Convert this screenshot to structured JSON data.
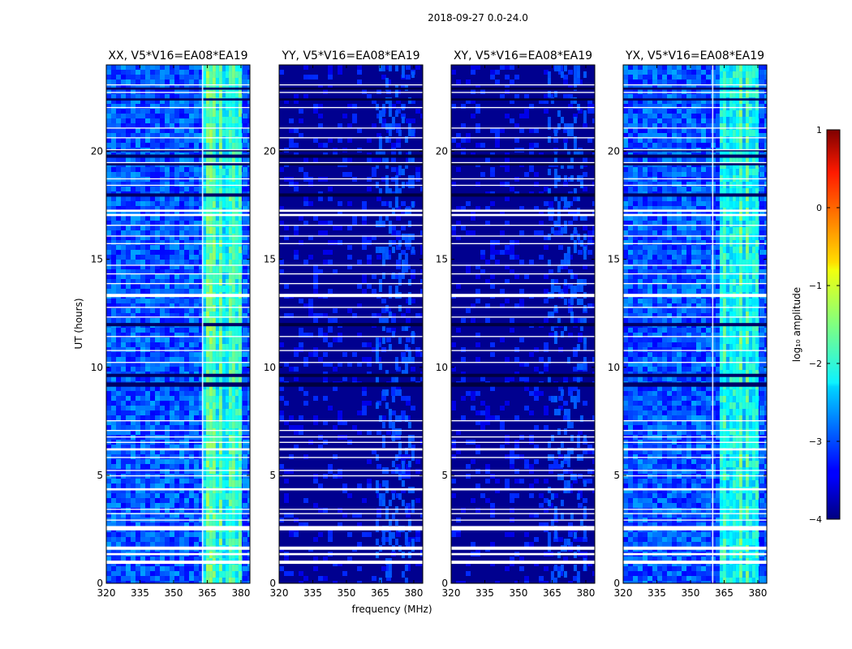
{
  "figure": {
    "suptitle": "2018-09-27 0.0-24.0",
    "ylabel": "UT (hours)",
    "xlabel": "frequency (MHz)"
  },
  "chart_data": {
    "type": "heatmap",
    "title": "2018-09-27 0.0-24.0",
    "xlabel": "frequency (MHz)",
    "ylabel": "UT (hours)",
    "xlim": [
      320,
      384
    ],
    "ylim": [
      0,
      24
    ],
    "xticks": [
      320,
      335,
      350,
      365,
      380
    ],
    "yticks": [
      0,
      5,
      10,
      15,
      20
    ],
    "panels": [
      {
        "name": "xx",
        "title": "XX, V5*V16=EA08*EA19",
        "level": "high",
        "hot_band_mhz": [
          363,
          380
        ],
        "flag_band_mhz": [
          362.6,
          363.2
        ]
      },
      {
        "name": "yy",
        "title": "YY, V5*V16=EA08*EA19",
        "level": "low",
        "hot_band_mhz": [
          363,
          380
        ],
        "flag_band_mhz": null
      },
      {
        "name": "xy",
        "title": "XY, V5*V16=EA08*EA19",
        "level": "low",
        "hot_band_mhz": [
          363,
          380
        ],
        "flag_band_mhz": null
      },
      {
        "name": "yx",
        "title": "YX, V5*V16=EA08*EA19",
        "level": "high",
        "hot_band_mhz": [
          363,
          380
        ],
        "flag_band_mhz": [
          359.6,
          360.2
        ]
      }
    ],
    "flagged_ut_hours": [
      [
        0.9,
        1.05
      ],
      [
        1.3,
        1.4
      ],
      [
        1.55,
        1.7
      ],
      [
        2.45,
        2.65
      ],
      [
        2.9,
        2.95
      ],
      [
        3.2,
        3.25
      ],
      [
        3.4,
        3.45
      ],
      [
        4.3,
        4.4
      ],
      [
        4.95,
        5.0
      ],
      [
        5.2,
        5.25
      ],
      [
        5.8,
        5.85
      ],
      [
        6.15,
        6.25
      ],
      [
        6.5,
        6.55
      ],
      [
        6.75,
        6.8
      ],
      [
        7.05,
        7.1
      ],
      [
        7.5,
        7.55
      ],
      [
        10.2,
        10.25
      ],
      [
        10.75,
        10.8
      ],
      [
        11.4,
        11.45
      ],
      [
        12.3,
        12.35
      ],
      [
        12.75,
        12.8
      ],
      [
        13.25,
        13.4
      ],
      [
        13.85,
        13.9
      ],
      [
        14.3,
        14.35
      ],
      [
        14.7,
        14.75
      ],
      [
        15.7,
        15.75
      ],
      [
        16.05,
        16.1
      ],
      [
        16.55,
        16.6
      ],
      [
        17.0,
        17.1
      ],
      [
        17.2,
        17.3
      ],
      [
        18.4,
        18.45
      ],
      [
        18.7,
        18.75
      ],
      [
        19.45,
        19.5
      ],
      [
        20.05,
        20.1
      ],
      [
        20.6,
        20.65
      ],
      [
        21.05,
        21.1
      ],
      [
        22.0,
        22.05
      ],
      [
        22.7,
        22.75
      ],
      [
        23.05,
        23.1
      ]
    ],
    "dark_ut_hours": [
      [
        9.1,
        9.3
      ],
      [
        9.55,
        9.7
      ],
      [
        11.9,
        12.05
      ],
      [
        17.9,
        18.05
      ],
      [
        19.35,
        19.45
      ],
      [
        19.7,
        19.85
      ],
      [
        20.0,
        20.05
      ],
      [
        22.35,
        22.45
      ],
      [
        22.85,
        22.95
      ]
    ],
    "colorbar": {
      "label": "log₁₀ amplitude",
      "min": -4,
      "max": 1,
      "ticks": [
        1,
        0,
        -1,
        -2,
        -3,
        -4
      ],
      "tick_labels": [
        "1",
        "0",
        "−1",
        "−2",
        "−3",
        "−4"
      ],
      "colormap": "jet"
    }
  }
}
